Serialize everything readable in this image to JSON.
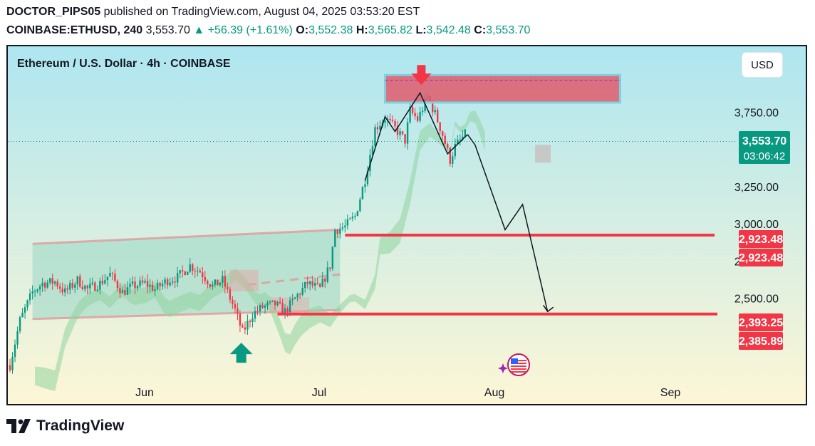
{
  "header": {
    "author": "DOCTOR_PIPS05",
    "published_text": "published on TradingView.com, August 04, 2025 03:53:20 EST",
    "symbol": "COINBASE:ETHUSD, 240",
    "last": "3,553.70",
    "change": "+56.39 (+1.61%)",
    "o_label": "O:",
    "o": "3,552.38",
    "h_label": "H:",
    "h": "3,565.82",
    "l_label": "L:",
    "l": "3,542.48",
    "c_label": "C:",
    "c": "3,553.70"
  },
  "legend": "Ethereum / U.S. Dollar · 4h · COINBASE",
  "currency_button": "USD",
  "brand": "TradingView",
  "price_badge": {
    "price": "3,553.70",
    "countdown": "03:06:42"
  },
  "level_badges": [
    "2,923.48",
    "2,923.48",
    "2,393.25",
    "2,385.89"
  ],
  "colors": {
    "up": "#089981",
    "down": "#f23645",
    "zone": "#e05b6b",
    "channel": "#9fd8c8",
    "cloud": "#8fd39f",
    "grad_top": "#aee6f0",
    "grad_bottom": "#fdf6d6"
  },
  "chart_data": {
    "type": "candlestick",
    "title": "Ethereum / U.S. Dollar · 4h · COINBASE",
    "y_ticks": [
      "3,750.00",
      "3,250.00",
      "3,000.00",
      "2,750.00",
      "2,500.00"
    ],
    "y_tick_values": [
      3750,
      3250,
      3000,
      2750,
      2500
    ],
    "x_ticks": [
      "Jun",
      "Jul",
      "Aug",
      "Sep"
    ],
    "ylim": [
      2000,
      4000
    ],
    "price_path": [
      [
        0,
        2050
      ],
      [
        4,
        2350
      ],
      [
        9,
        2540
      ],
      [
        13,
        2600
      ],
      [
        18,
        2610
      ],
      [
        22,
        2540
      ],
      [
        27,
        2620
      ],
      [
        31,
        2560
      ],
      [
        36,
        2600
      ],
      [
        40,
        2660
      ],
      [
        45,
        2540
      ],
      [
        49,
        2580
      ],
      [
        54,
        2600
      ],
      [
        58,
        2560
      ],
      [
        63,
        2620
      ],
      [
        67,
        2640
      ],
      [
        72,
        2720
      ],
      [
        76,
        2680
      ],
      [
        81,
        2580
      ],
      [
        85,
        2620
      ],
      [
        90,
        2420
      ],
      [
        93,
        2270
      ],
      [
        97,
        2390
      ],
      [
        101,
        2440
      ],
      [
        106,
        2460
      ],
      [
        110,
        2410
      ],
      [
        115,
        2520
      ],
      [
        119,
        2600
      ],
      [
        124,
        2560
      ],
      [
        128,
        2720
      ],
      [
        130,
        2960
      ],
      [
        134,
        2980
      ],
      [
        138,
        3050
      ],
      [
        142,
        3300
      ],
      [
        146,
        3640
      ],
      [
        150,
        3710
      ],
      [
        154,
        3640
      ],
      [
        158,
        3560
      ],
      [
        160,
        3760
      ],
      [
        163,
        3700
      ],
      [
        167,
        3850
      ],
      [
        170,
        3740
      ],
      [
        173,
        3600
      ],
      [
        176,
        3430
      ],
      [
        178,
        3520
      ],
      [
        182,
        3600
      ]
    ],
    "projection": [
      [
        183,
        3600
      ],
      [
        186,
        3530
      ],
      [
        198,
        2960
      ],
      [
        205,
        3130
      ],
      [
        215,
        2410
      ]
    ],
    "channel": {
      "upper": [
        [
          9,
          2865
        ],
        [
          132,
          2960
        ]
      ],
      "lower": [
        [
          9,
          2360
        ],
        [
          132,
          2420
        ]
      ],
      "mid": [
        [
          95,
          2590
        ],
        [
          132,
          2660
        ]
      ]
    },
    "resistance_zone": {
      "x": [
        150,
        244
      ],
      "y": [
        3815,
        4000
      ],
      "mid": 3965
    },
    "support_levels": [
      2923.48,
      2393.25
    ],
    "current_price": 3553.7
  }
}
